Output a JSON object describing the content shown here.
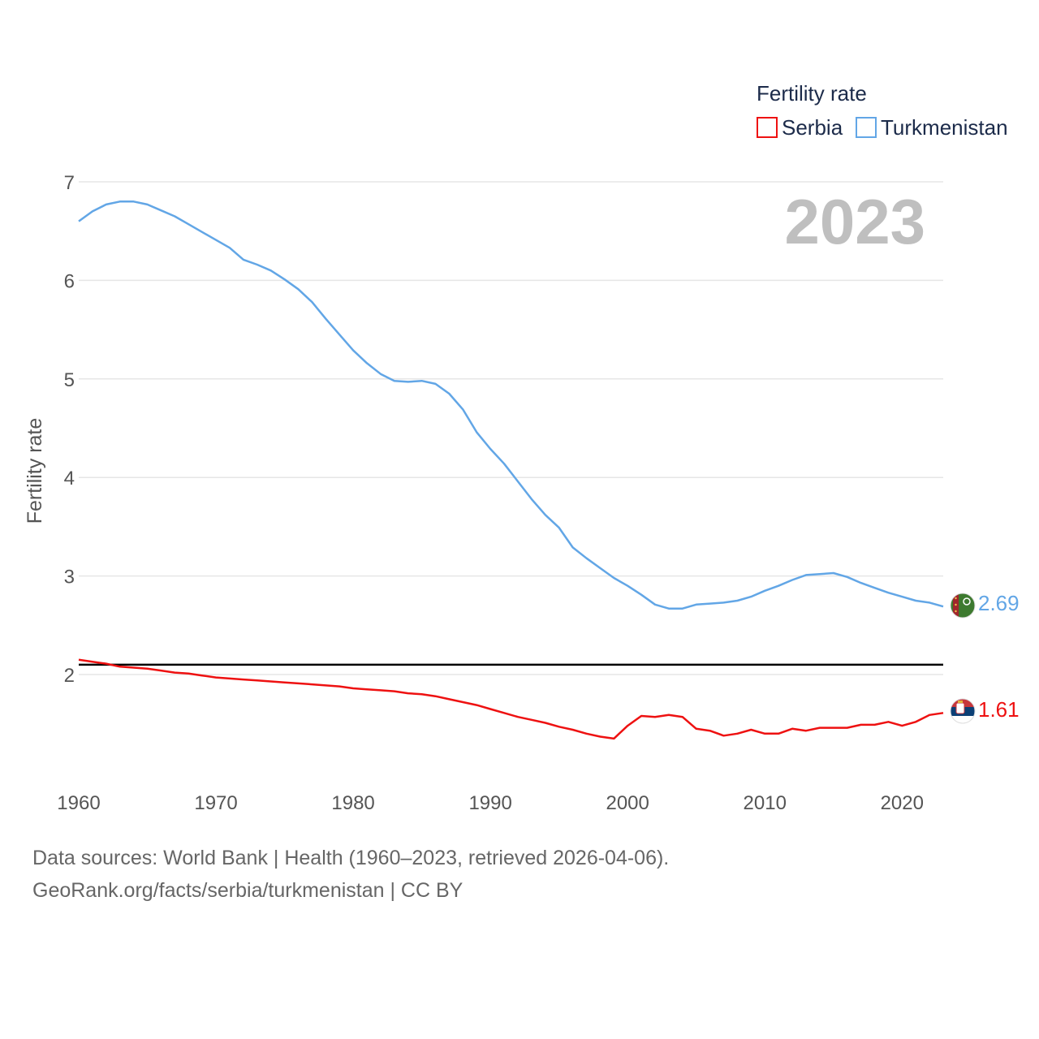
{
  "chart_data": {
    "type": "line",
    "title": "Fertility rate",
    "year_label": "2023",
    "ylabel": "Fertility rate",
    "xlabel": "",
    "xlim": [
      1960,
      2023
    ],
    "ylim": [
      1,
      7
    ],
    "xticks": [
      1960,
      1970,
      1980,
      1990,
      2000,
      2010,
      2020
    ],
    "yticks": [
      2,
      3,
      4,
      5,
      6,
      7
    ],
    "reference_line": 2.1,
    "series": [
      {
        "name": "Serbia",
        "color": "#ee1111",
        "end_label": "1.61",
        "flag_icon": "serbia-flag-icon",
        "x": [
          1960,
          1961,
          1962,
          1963,
          1964,
          1965,
          1966,
          1967,
          1968,
          1969,
          1970,
          1971,
          1972,
          1973,
          1974,
          1975,
          1976,
          1977,
          1978,
          1979,
          1980,
          1981,
          1982,
          1983,
          1984,
          1985,
          1986,
          1987,
          1988,
          1989,
          1990,
          1991,
          1992,
          1993,
          1994,
          1995,
          1996,
          1997,
          1998,
          1999,
          2000,
          2001,
          2002,
          2003,
          2004,
          2005,
          2006,
          2007,
          2008,
          2009,
          2010,
          2011,
          2012,
          2013,
          2014,
          2015,
          2016,
          2017,
          2018,
          2019,
          2020,
          2021,
          2022,
          2023
        ],
        "values": [
          2.15,
          2.13,
          2.11,
          2.08,
          2.07,
          2.06,
          2.04,
          2.02,
          2.01,
          1.99,
          1.97,
          1.96,
          1.95,
          1.94,
          1.93,
          1.92,
          1.91,
          1.9,
          1.89,
          1.88,
          1.86,
          1.85,
          1.84,
          1.83,
          1.81,
          1.8,
          1.78,
          1.75,
          1.72,
          1.69,
          1.65,
          1.61,
          1.57,
          1.54,
          1.51,
          1.47,
          1.44,
          1.4,
          1.37,
          1.35,
          1.48,
          1.58,
          1.57,
          1.59,
          1.57,
          1.45,
          1.43,
          1.38,
          1.4,
          1.44,
          1.4,
          1.4,
          1.45,
          1.43,
          1.46,
          1.46,
          1.46,
          1.49,
          1.49,
          1.52,
          1.48,
          1.52,
          1.59,
          1.61
        ]
      },
      {
        "name": "Turkmenistan",
        "color": "#62a6e6",
        "end_label": "2.69",
        "flag_icon": "turkmenistan-flag-icon",
        "x": [
          1960,
          1961,
          1962,
          1963,
          1964,
          1965,
          1966,
          1967,
          1968,
          1969,
          1970,
          1971,
          1972,
          1973,
          1974,
          1975,
          1976,
          1977,
          1978,
          1979,
          1980,
          1981,
          1982,
          1983,
          1984,
          1985,
          1986,
          1987,
          1988,
          1989,
          1990,
          1991,
          1992,
          1993,
          1994,
          1995,
          1996,
          1997,
          1998,
          1999,
          2000,
          2001,
          2002,
          2003,
          2004,
          2005,
          2006,
          2007,
          2008,
          2009,
          2010,
          2011,
          2012,
          2013,
          2014,
          2015,
          2016,
          2017,
          2018,
          2019,
          2020,
          2021,
          2022,
          2023
        ],
        "values": [
          6.6,
          6.7,
          6.77,
          6.8,
          6.8,
          6.77,
          6.71,
          6.65,
          6.57,
          6.49,
          6.41,
          6.33,
          6.21,
          6.16,
          6.1,
          6.01,
          5.91,
          5.78,
          5.61,
          5.45,
          5.29,
          5.16,
          5.05,
          4.98,
          4.97,
          4.98,
          4.95,
          4.85,
          4.69,
          4.46,
          4.29,
          4.14,
          3.96,
          3.78,
          3.62,
          3.49,
          3.29,
          3.18,
          3.08,
          2.98,
          2.9,
          2.81,
          2.71,
          2.67,
          2.67,
          2.71,
          2.72,
          2.73,
          2.75,
          2.79,
          2.85,
          2.9,
          2.96,
          3.01,
          3.02,
          3.03,
          2.99,
          2.93,
          2.88,
          2.83,
          2.79,
          2.75,
          2.73,
          2.69
        ]
      }
    ]
  },
  "footer": {
    "line1": "Data sources: World Bank | Health (1960–2023, retrieved 2026-04-06).",
    "line2": "GeoRank.org/facts/serbia/turkmenistan | CC BY"
  }
}
